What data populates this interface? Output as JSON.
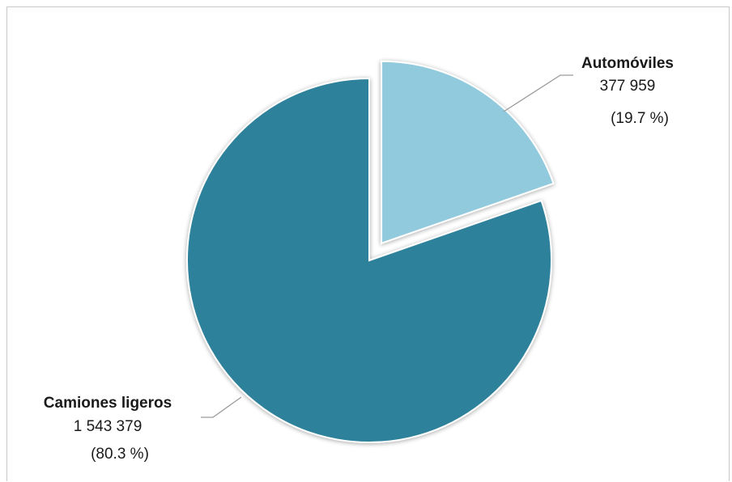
{
  "chart_data": {
    "type": "pie",
    "slices": [
      {
        "label": "Automóviles",
        "value": 377959,
        "value_text": "377 959",
        "pct": 19.7,
        "pct_text": "(19.7 %)",
        "color": "#92cadd",
        "exploded": true
      },
      {
        "label": "Camiones ligeros",
        "value": 1543379,
        "value_text": "1 543 379",
        "pct": 80.3,
        "pct_text": "(80.3 %)",
        "color": "#2e819a",
        "exploded": false
      }
    ],
    "start_angle_deg": 0,
    "direction": "clockwise",
    "legend": "none",
    "data_labels": "outside-with-leader-lines"
  }
}
